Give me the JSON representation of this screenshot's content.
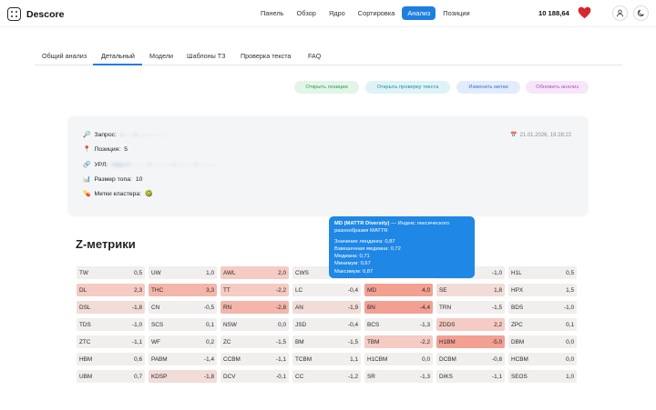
{
  "app": {
    "name": "Descore"
  },
  "nav": [
    {
      "label": "Панель"
    },
    {
      "label": "Обзор"
    },
    {
      "label": "Ядро"
    },
    {
      "label": "Сортировка"
    },
    {
      "label": "Анализ",
      "active": true
    },
    {
      "label": "Позиции"
    }
  ],
  "header": {
    "balance": "10 188,64"
  },
  "tabs": [
    {
      "label": "Общий анализ"
    },
    {
      "label": "Детальный",
      "active": true
    },
    {
      "label": "Модели"
    },
    {
      "label": "Шаблоны ТЗ"
    },
    {
      "label": "Проверка текста"
    },
    {
      "label": "FAQ"
    }
  ],
  "actions": [
    {
      "label": "Открыть позиции",
      "color": "#2e9d4f",
      "bg": "#e3f5e8"
    },
    {
      "label": "Открыть проверку текста",
      "color": "#1b8fa3",
      "bg": "#dff3f6"
    },
    {
      "label": "Изменить метки",
      "color": "#3d6fd6",
      "bg": "#e3ecfb"
    },
    {
      "label": "Обновить анализ",
      "color": "#b24fc4",
      "bg": "#f6e6f8"
    }
  ],
  "info": {
    "query_label": "Запрос:",
    "query_value": "«·····» ······· ······",
    "position_label": "Позиция:",
    "position_value": "5",
    "url_label": "УРЛ:",
    "url_value": "https://·········/···········/··········/·········",
    "topsize_label": "Размер топа:",
    "topsize_value": "10",
    "cluster_label": "Метки кластера:",
    "date": "21.01.2026, 19:28:22"
  },
  "tooltip": {
    "title": "MD (MATTR Diversity)",
    "desc": " — Индекс лексического разнообразия MATTR",
    "lines": [
      "Значение лендинга: 0,87",
      "Взвешенная медиана: 0,72",
      "Медиана: 0,71",
      "Минимум: 0,67",
      "Максимум: 0,87"
    ]
  },
  "zmetrics": {
    "title": "Z-метрики",
    "columns": [
      [
        [
          "TW",
          "0,5"
        ],
        [
          "DL",
          "2,3"
        ],
        [
          "DSL",
          "-1,8"
        ],
        [
          "TDS",
          "-1,0"
        ],
        [
          "ZTC",
          "-1,1"
        ],
        [
          "HBM",
          "0,6"
        ],
        [
          "UBM",
          "0,7"
        ]
      ],
      [
        [
          "UW",
          "1,0"
        ],
        [
          "THC",
          "3,3"
        ],
        [
          "CN",
          "-0,5"
        ],
        [
          "SCS",
          "0,1"
        ],
        [
          "WF",
          "0,2"
        ],
        [
          "PABM",
          "-1,4"
        ],
        [
          "KDSP",
          "-1,8"
        ]
      ],
      [
        [
          "AWL",
          "2,0"
        ],
        [
          "TT",
          "-2,2"
        ],
        [
          "RN",
          "-2,8"
        ],
        [
          "NSW",
          "0,0"
        ],
        [
          "ZC",
          "-1,5"
        ],
        [
          "CCBM",
          "-1,1"
        ],
        [
          "DCV",
          "-0,1"
        ]
      ],
      [
        [
          "CWS",
          ""
        ],
        [
          "LC",
          "-0,4"
        ],
        [
          "AN",
          "-1,9"
        ],
        [
          "JSD",
          "-0,4"
        ],
        [
          "BM",
          "-1,5"
        ],
        [
          "TCBM",
          "1,1"
        ],
        [
          "CC",
          "-1,2"
        ]
      ],
      [
        [
          "",
          ""
        ],
        [
          "MD",
          "4,0"
        ],
        [
          "BN",
          "-4,4"
        ],
        [
          "BCS",
          "-1,3"
        ],
        [
          "TBM",
          "-2,2"
        ],
        [
          "H1CBM",
          "0,0"
        ],
        [
          "SR",
          "-1,3"
        ]
      ],
      [
        [
          "",
          "-1,0"
        ],
        [
          "SE",
          "1,8"
        ],
        [
          "TRN",
          "-1,5"
        ],
        [
          "ZDDS",
          "2,2"
        ],
        [
          "H1BM",
          "-5,0"
        ],
        [
          "DCBM",
          "-0,8"
        ],
        [
          "DIKS",
          "-1,1"
        ]
      ],
      [
        [
          "H1L",
          "0,5"
        ],
        [
          "HPX",
          "1,5"
        ],
        [
          "BDS",
          "-1,0"
        ],
        [
          "ZPC",
          "0,1"
        ],
        [
          "DBM",
          "0,0"
        ],
        [
          "HCBM",
          "0,0"
        ],
        [
          "SEOS",
          "1,0"
        ]
      ]
    ]
  }
}
